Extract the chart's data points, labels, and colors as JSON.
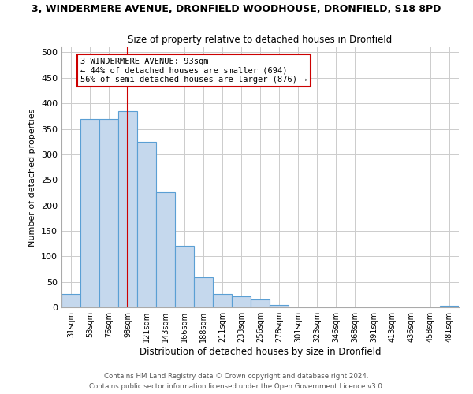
{
  "title_main": "3, WINDERMERE AVENUE, DRONFIELD WOODHOUSE, DRONFIELD, S18 8PD",
  "title_sub": "Size of property relative to detached houses in Dronfield",
  "xlabel": "Distribution of detached houses by size in Dronfield",
  "ylabel": "Number of detached properties",
  "bar_labels": [
    "31sqm",
    "53sqm",
    "76sqm",
    "98sqm",
    "121sqm",
    "143sqm",
    "166sqm",
    "188sqm",
    "211sqm",
    "233sqm",
    "256sqm",
    "278sqm",
    "301sqm",
    "323sqm",
    "346sqm",
    "368sqm",
    "391sqm",
    "413sqm",
    "436sqm",
    "458sqm",
    "481sqm"
  ],
  "bar_heights": [
    27,
    370,
    370,
    385,
    325,
    225,
    120,
    58,
    27,
    22,
    16,
    5,
    0,
    0,
    0,
    0,
    0,
    0,
    0,
    0,
    3
  ],
  "bar_color": "#c5d8ed",
  "bar_edge_color": "#5a9fd4",
  "vline_x": 3,
  "vline_color": "#cc0000",
  "annotation_text": "3 WINDERMERE AVENUE: 93sqm\n← 44% of detached houses are smaller (694)\n56% of semi-detached houses are larger (876) →",
  "annotation_box_color": "white",
  "annotation_box_edge_color": "#cc0000",
  "ylim": [
    0,
    510
  ],
  "yticks": [
    0,
    50,
    100,
    150,
    200,
    250,
    300,
    350,
    400,
    450,
    500
  ],
  "footer_line1": "Contains HM Land Registry data © Crown copyright and database right 2024.",
  "footer_line2": "Contains public sector information licensed under the Open Government Licence v3.0.",
  "background_color": "#ffffff",
  "grid_color": "#cccccc"
}
